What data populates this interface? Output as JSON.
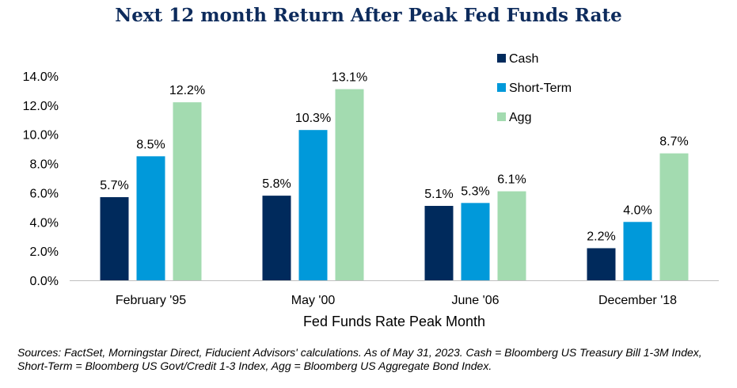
{
  "chart_data": {
    "type": "bar",
    "title": "Next 12 month Return After Peak Fed Funds Rate",
    "xlabel": "Fed Funds Rate Peak Month",
    "ylabel": "",
    "ylim": [
      0,
      14
    ],
    "yticks": [
      "0.0%",
      "2.0%",
      "4.0%",
      "6.0%",
      "8.0%",
      "10.0%",
      "12.0%",
      "14.0%"
    ],
    "categories": [
      "February '95",
      "May '00",
      "June '06",
      "December '18"
    ],
    "series": [
      {
        "name": "Cash",
        "color": "#002a5c",
        "values": [
          5.7,
          5.8,
          5.1,
          2.2
        ],
        "labels": [
          "5.7%",
          "5.8%",
          "5.1%",
          "2.2%"
        ]
      },
      {
        "name": "Short-Term",
        "color": "#0099da",
        "values": [
          8.5,
          10.3,
          5.3,
          4.0
        ],
        "labels": [
          "8.5%",
          "10.3%",
          "5.3%",
          "4.0%"
        ]
      },
      {
        "name": "Agg",
        "color": "#a3dbb0",
        "values": [
          12.2,
          13.1,
          6.1,
          8.7
        ],
        "labels": [
          "12.2%",
          "13.1%",
          "6.1%",
          "8.7%"
        ]
      }
    ],
    "legend_position": "top-right",
    "grid": false
  },
  "footnote": "Sources: FactSet, Morningstar Direct, Fiducient Advisors' calculations. As of May 31, 2023. Cash = Bloomberg US Treasury Bill 1-3M Index, Short-Term = Bloomberg US Govt/Credit 1-3 Index, Agg = Bloomberg US Aggregate Bond Index."
}
